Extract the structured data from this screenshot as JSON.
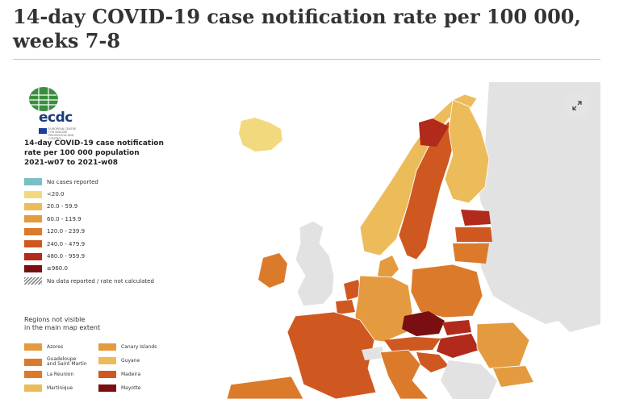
{
  "title": "14-day COVID-19 case notification rate per 100 000, weeks 7-8",
  "logo": {
    "text": "ecdc",
    "subtitle": "EUROPEAN CENTRE FOR DISEASE PREVENTION AND CONTROL"
  },
  "legend": {
    "title_line1": "14-day COVID-19 case notification",
    "title_line2": "rate per 100 000 population",
    "title_line3": "2021-w07 to 2021-w08",
    "items": [
      {
        "label": "No cases reported",
        "color": "#7bbfc6"
      },
      {
        "label": "<20.0",
        "color": "#f3d97d"
      },
      {
        "label": "20.0 - 59.9",
        "color": "#ecbc5b"
      },
      {
        "label": "60.0 - 119.9",
        "color": "#e49b3f"
      },
      {
        "label": "120.0 - 239.9",
        "color": "#dc7a2c"
      },
      {
        "label": "240.0 - 479.9",
        "color": "#cf5820"
      },
      {
        "label": "480.0 - 959.9",
        "color": "#b12a1b"
      },
      {
        "label": "≥960.0",
        "color": "#7a0f12"
      },
      {
        "label": "No data reported / rate not calculated",
        "color": "hatched"
      }
    ],
    "regions_heading_line1": "Regions not visible",
    "regions_heading_line2": "in the main map extent",
    "regions": [
      {
        "label": "Azores",
        "color": "#e49b3f"
      },
      {
        "label": "Canary Islands",
        "color": "#e49b3f"
      },
      {
        "label": "Guadeloupe\nand Saint Martin",
        "color": "#dc7a2c"
      },
      {
        "label": "Guyane",
        "color": "#ecbc5b"
      },
      {
        "label": "La Reunion",
        "color": "#dc7a2c"
      },
      {
        "label": "Madeira",
        "color": "#cf5820"
      },
      {
        "label": "Martinique",
        "color": "#ecbc5b"
      },
      {
        "label": "Mayotte",
        "color": "#7a0f12"
      }
    ]
  },
  "map_colors": {
    "sea": "#ffffff",
    "non_eu_land": "#e2e2e2",
    "border": "#ffffff"
  }
}
